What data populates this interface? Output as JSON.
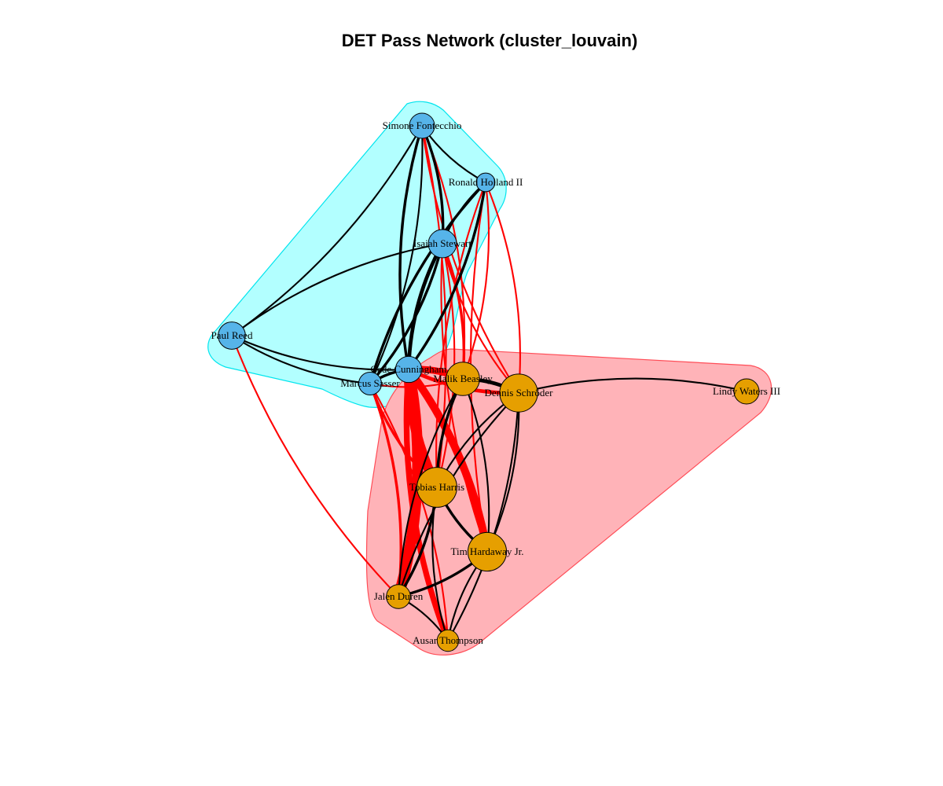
{
  "title": "DET Pass Network (cluster_louvain)",
  "colors": {
    "cluster_1_node": "#56B4E9",
    "cluster_2_node": "#E69F00",
    "cluster_1_hull_fill": "#B2FFFF",
    "cluster_1_hull_stroke": "#00E5EE",
    "cluster_2_hull_fill": "#FFB3B8",
    "cluster_2_hull_stroke": "#FF4D57",
    "within_edge": "#000000",
    "between_edge": "#FF0000"
  },
  "nodes": [
    {
      "id": "fontecchio",
      "label": "Simone Fontecchio",
      "cluster": 1,
      "size": 1
    },
    {
      "id": "holland",
      "label": "Ronald Holland II",
      "cluster": 1,
      "size": 0.5
    },
    {
      "id": "stewart",
      "label": "Isaiah Stewart",
      "cluster": 1,
      "size": 1.3
    },
    {
      "id": "reed",
      "label": "Paul Reed",
      "cluster": 1,
      "size": 1.2
    },
    {
      "id": "cunningham",
      "label": "Cade Cunningham",
      "cluster": 1,
      "size": 1.1
    },
    {
      "id": "sasser",
      "label": "Marcus Sasser",
      "cluster": 1,
      "size": 0.8
    },
    {
      "id": "beasley",
      "label": "Malik Beasley",
      "cluster": 2,
      "size": 1.9
    },
    {
      "id": "schroder",
      "label": "Dennis Schröder",
      "cluster": 2,
      "size": 2.5
    },
    {
      "id": "waters",
      "label": "Lindy Waters III",
      "cluster": 2,
      "size": 1
    },
    {
      "id": "harris",
      "label": "Tobias Harris",
      "cluster": 2,
      "size": 2.8
    },
    {
      "id": "hardaway",
      "label": "Tim Hardaway Jr.",
      "cluster": 2,
      "size": 2.6
    },
    {
      "id": "duren",
      "label": "Jalen Duren",
      "cluster": 2,
      "size": 0.9
    },
    {
      "id": "thompson",
      "label": "Ausar Thompson",
      "cluster": 2,
      "size": 0.7
    }
  ],
  "edges": [
    {
      "source": "cunningham",
      "target": "duren",
      "weight": 10
    },
    {
      "source": "cunningham",
      "target": "harris",
      "weight": 9
    },
    {
      "source": "cunningham",
      "target": "hardaway",
      "weight": 7
    },
    {
      "source": "cunningham",
      "target": "thompson",
      "weight": 5
    },
    {
      "source": "cunningham",
      "target": "beasley",
      "weight": 6
    },
    {
      "source": "cunningham",
      "target": "schroder",
      "weight": 3
    },
    {
      "source": "sasser",
      "target": "duren",
      "weight": 2
    },
    {
      "source": "sasser",
      "target": "harris",
      "weight": 2
    },
    {
      "source": "sasser",
      "target": "thompson",
      "weight": 1
    },
    {
      "source": "sasser",
      "target": "beasley",
      "weight": 1
    },
    {
      "source": "stewart",
      "target": "beasley",
      "weight": 2
    },
    {
      "source": "stewart",
      "target": "schroder",
      "weight": 1
    },
    {
      "source": "stewart",
      "target": "harris",
      "weight": 1
    },
    {
      "source": "stewart",
      "target": "hardaway",
      "weight": 1
    },
    {
      "source": "holland",
      "target": "schroder",
      "weight": 1
    },
    {
      "source": "holland",
      "target": "hardaway",
      "weight": 1
    },
    {
      "source": "holland",
      "target": "beasley",
      "weight": 1
    },
    {
      "source": "holland",
      "target": "harris",
      "weight": 1
    },
    {
      "source": "fontecchio",
      "target": "beasley",
      "weight": 1
    },
    {
      "source": "fontecchio",
      "target": "schroder",
      "weight": 1
    },
    {
      "source": "fontecchio",
      "target": "harris",
      "weight": 1
    },
    {
      "source": "reed",
      "target": "duren",
      "weight": 1
    },
    {
      "source": "cunningham",
      "target": "stewart",
      "weight": 3
    },
    {
      "source": "cunningham",
      "target": "holland",
      "weight": 2
    },
    {
      "source": "cunningham",
      "target": "fontecchio",
      "weight": 2
    },
    {
      "source": "cunningham",
      "target": "sasser",
      "weight": 2
    },
    {
      "source": "cunningham",
      "target": "reed",
      "weight": 1
    },
    {
      "source": "sasser",
      "target": "stewart",
      "weight": 2
    },
    {
      "source": "sasser",
      "target": "holland",
      "weight": 2
    },
    {
      "source": "sasser",
      "target": "fontecchio",
      "weight": 1
    },
    {
      "source": "sasser",
      "target": "reed",
      "weight": 1
    },
    {
      "source": "stewart",
      "target": "fontecchio",
      "weight": 2
    },
    {
      "source": "stewart",
      "target": "holland",
      "weight": 1
    },
    {
      "source": "fontecchio",
      "target": "holland",
      "weight": 1
    },
    {
      "source": "reed",
      "target": "stewart",
      "weight": 1
    },
    {
      "source": "reed",
      "target": "fontecchio",
      "weight": 1
    },
    {
      "source": "beasley",
      "target": "schroder",
      "weight": 3
    },
    {
      "source": "beasley",
      "target": "harris",
      "weight": 2
    },
    {
      "source": "beasley",
      "target": "hardaway",
      "weight": 1
    },
    {
      "source": "beasley",
      "target": "duren",
      "weight": 1
    },
    {
      "source": "schroder",
      "target": "waters",
      "weight": 1
    },
    {
      "source": "schroder",
      "target": "harris",
      "weight": 1
    },
    {
      "source": "schroder",
      "target": "hardaway",
      "weight": 1
    },
    {
      "source": "schroder",
      "target": "duren",
      "weight": 1
    },
    {
      "source": "schroder",
      "target": "thompson",
      "weight": 1
    },
    {
      "source": "harris",
      "target": "hardaway",
      "weight": 2
    },
    {
      "source": "harris",
      "target": "duren",
      "weight": 2
    },
    {
      "source": "harris",
      "target": "thompson",
      "weight": 1
    },
    {
      "source": "hardaway",
      "target": "duren",
      "weight": 2
    },
    {
      "source": "hardaway",
      "target": "thompson",
      "weight": 1
    },
    {
      "source": "duren",
      "target": "thompson",
      "weight": 1
    }
  ]
}
